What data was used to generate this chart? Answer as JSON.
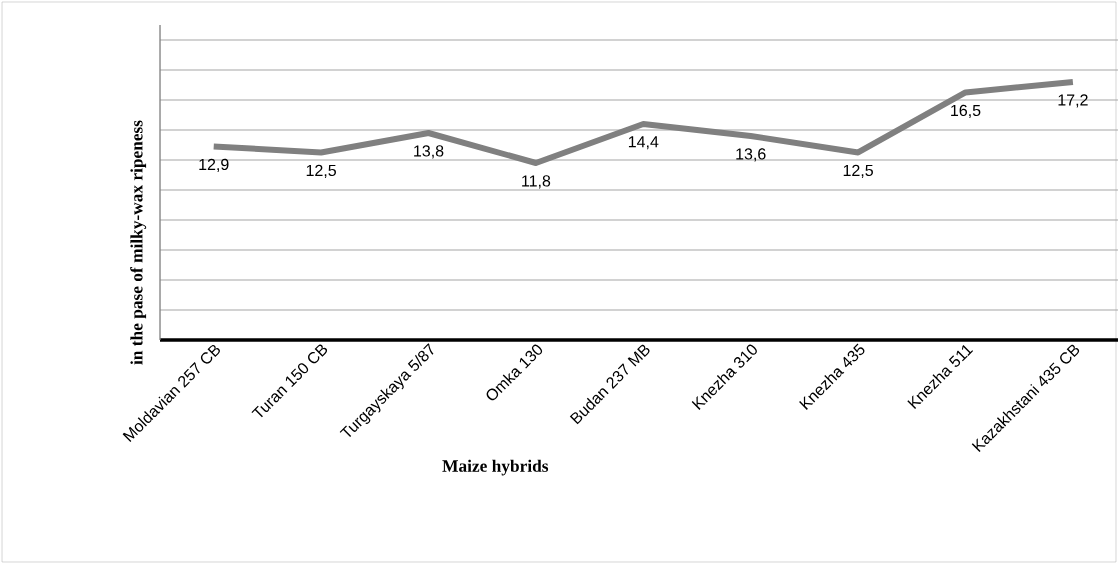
{
  "chart_data": {
    "type": "line",
    "xlabel": "Maize hybrids",
    "ylabel": "in the pase of milky-wax ripeness",
    "categories": [
      "Moldavian 257 CB",
      "Turan 150 CB",
      "Turgayskaya 5/87",
      "Omka 130",
      "Budan 237 MB",
      "Knezha 310",
      "Knezha 435",
      "Knezha 511",
      "Kazakhstani 435 CB"
    ],
    "series": [
      {
        "color": "#808080",
        "values": [
          12.9,
          12.5,
          13.8,
          11.8,
          14.4,
          13.6,
          12.5,
          16.5,
          17.2
        ],
        "value_labels": [
          "12,9",
          "12,5",
          "13,8",
          "11,8",
          "14,4",
          "13,6",
          "12,5",
          "16,5",
          "17,2"
        ]
      }
    ],
    "ylim": [
      0,
      21
    ],
    "yticks": [
      {
        "value": 2,
        "label": null
      },
      {
        "value": 4,
        "label": null
      },
      {
        "value": 6,
        "label": null
      },
      {
        "value": 8,
        "label": null
      },
      {
        "value": 10,
        "label": null
      },
      {
        "value": 12,
        "label": null
      },
      {
        "value": 14,
        "label": null
      },
      {
        "value": 16,
        "label": null
      },
      {
        "value": 18,
        "label": null
      },
      {
        "value": 20,
        "label": null
      }
    ],
    "grid": "y",
    "tick_labels": "x",
    "marker": "none",
    "line_style": "solid"
  }
}
